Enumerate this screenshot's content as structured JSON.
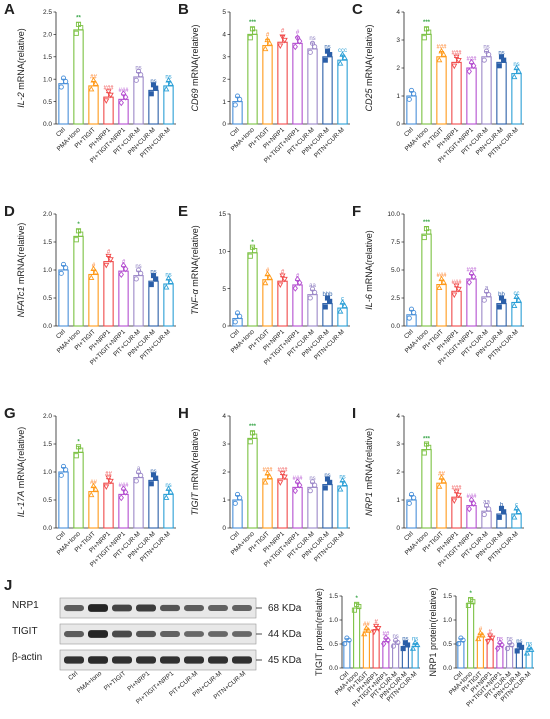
{
  "figure": {
    "colors": [
      "#4a90d9",
      "#7bc142",
      "#ff9a1a",
      "#f04a4a",
      "#b44fd0",
      "#9c88c8",
      "#2b5fa8",
      "#2a9fd6"
    ],
    "categories": [
      "Ctrl",
      "PMA+Iono",
      "PI+TIGIT",
      "PI+NRP1",
      "PI+TIGIT+NRP1",
      "PIT+CUR-M",
      "PIN+CUR-M",
      "PITN+CUR-M"
    ],
    "blot_categories": [
      "Ctrl",
      "PMA+Iono",
      "PI+TIGIT",
      "PI+NRP1",
      "PI+TIGIT+NRP1",
      "PIT+CUR-M",
      "PIN+CUR-M",
      "PITN+CUR-M"
    ],
    "blot_rows": [
      "NRP1",
      "TIGIT",
      "β-actin"
    ],
    "blot_kda": [
      "68 KDa",
      "44 KDa",
      "45 KDa"
    ],
    "panel_J_letter": "J"
  },
  "chart_data": [
    {
      "panel": "A",
      "type": "bar",
      "gene": "IL-2",
      "ylabel_suffix": " mRNA(relative)",
      "ylim": [
        0,
        2.5
      ],
      "yticks": [
        "0.0",
        "0.5",
        "1.0",
        "1.5",
        "2.0",
        "2.5"
      ],
      "values": [
        0.9,
        2.1,
        0.85,
        0.6,
        0.55,
        1.05,
        0.75,
        0.85
      ],
      "sig": [
        "",
        "**",
        "##",
        "###",
        "###",
        "ns",
        "ns",
        "ns"
      ]
    },
    {
      "panel": "B",
      "type": "bar",
      "gene": "CD69",
      "ylabel_suffix": " mRNA(relative)",
      "ylim": [
        0,
        5
      ],
      "yticks": [
        "0",
        "1",
        "2",
        "3",
        "4",
        "5"
      ],
      "values": [
        1.0,
        4.0,
        3.5,
        3.65,
        3.6,
        3.35,
        3.0,
        2.85
      ],
      "sig": [
        "",
        "***",
        "#",
        "#",
        "#",
        "ns",
        "ns",
        "ccc"
      ]
    },
    {
      "panel": "C",
      "type": "bar",
      "gene": "CD25",
      "ylabel_suffix": " mRNA(relative)",
      "ylim": [
        0,
        4
      ],
      "yticks": [
        "0",
        "1",
        "2",
        "3",
        "4"
      ],
      "values": [
        1.0,
        3.2,
        2.4,
        2.2,
        2.0,
        2.4,
        2.2,
        1.8
      ],
      "sig": [
        "",
        "***",
        "###",
        "###",
        "###",
        "ns",
        "ns",
        "ns"
      ]
    },
    {
      "panel": "D",
      "type": "bar",
      "gene": "NFATc1",
      "ylabel_suffix": " mRNA(relative)",
      "ylim": [
        0,
        2.0
      ],
      "yticks": [
        "0.0",
        "0.5",
        "1.0",
        "1.5",
        "2.0"
      ],
      "values": [
        1.0,
        1.6,
        0.92,
        1.15,
        0.98,
        0.9,
        0.8,
        0.75
      ],
      "sig": [
        "",
        "*",
        "#",
        "#",
        "#",
        "ns",
        "ns",
        "ns"
      ]
    },
    {
      "panel": "E",
      "type": "bar",
      "gene": "TNF-α",
      "ylabel_suffix": " mRNA(relative)",
      "ylim": [
        0,
        15
      ],
      "yticks": [
        "0",
        "5",
        "10",
        "15"
      ],
      "values": [
        1.0,
        9.8,
        6.2,
        6.0,
        5.5,
        4.2,
        3.0,
        2.4
      ],
      "sig": [
        "",
        "*",
        "#",
        "#",
        "#",
        "aa",
        "bbb",
        "c"
      ]
    },
    {
      "panel": "F",
      "type": "bar",
      "gene": "IL-6",
      "ylabel_suffix": " mRNA(relative)",
      "ylim": [
        0,
        10
      ],
      "yticks": [
        "0.0",
        "2.5",
        "5.0",
        "7.5",
        "10.0"
      ],
      "values": [
        1.0,
        8.2,
        3.7,
        3.1,
        4.2,
        2.6,
        2.0,
        2.1
      ],
      "sig": [
        "",
        "***",
        "###",
        "###",
        "###",
        "a",
        "bb",
        "cc"
      ]
    },
    {
      "panel": "G",
      "type": "bar",
      "gene": "IL-17A",
      "ylabel_suffix": " mRNA(relative)",
      "ylim": [
        0,
        2.0
      ],
      "yticks": [
        "0.0",
        "0.5",
        "1.0",
        "1.5",
        "2.0"
      ],
      "values": [
        1.0,
        1.35,
        0.65,
        0.8,
        0.6,
        0.9,
        0.85,
        0.6
      ],
      "sig": [
        "",
        "*",
        "##",
        "##",
        "###",
        "a",
        "ns",
        "ns"
      ]
    },
    {
      "panel": "H",
      "type": "bar",
      "gene": "TIGIT",
      "ylabel_suffix": " mRNA(relative)",
      "ylim": [
        0,
        4
      ],
      "yticks": [
        "0",
        "1",
        "2",
        "3",
        "4"
      ],
      "values": [
        1.0,
        3.2,
        1.75,
        1.75,
        1.45,
        1.45,
        1.55,
        1.5
      ],
      "sig": [
        "",
        "***",
        "###",
        "###",
        "###",
        "ns",
        "ns",
        "ns"
      ]
    },
    {
      "panel": "I",
      "type": "bar",
      "gene": "NRP1",
      "ylabel_suffix": " mRNA(relative)",
      "ylim": [
        0,
        4
      ],
      "yticks": [
        "0",
        "1",
        "2",
        "3",
        "4"
      ],
      "values": [
        1.0,
        2.8,
        1.6,
        1.1,
        0.8,
        0.6,
        0.5,
        0.5
      ],
      "sig": [
        "",
        "***",
        "##",
        "###",
        "###",
        "aa",
        "b",
        "c"
      ]
    },
    {
      "panel": "J1",
      "type": "bar",
      "ylabel": "TIGIT protein(relative)",
      "ylim": [
        0,
        1.5
      ],
      "yticks": [
        "0.0",
        "0.5",
        "1.0",
        "1.5"
      ],
      "values": [
        0.55,
        1.25,
        0.75,
        0.8,
        0.55,
        0.5,
        0.45,
        0.45
      ],
      "sig": [
        "",
        "*",
        "##",
        "#",
        "##",
        "ns",
        "ns",
        "ns"
      ]
    },
    {
      "panel": "J2",
      "type": "bar",
      "ylabel": "NRP1 protein(relative)",
      "ylim": [
        0,
        1.5
      ],
      "yticks": [
        "0.0",
        "0.5",
        "1.0",
        "1.5"
      ],
      "values": [
        0.55,
        1.35,
        0.65,
        0.6,
        0.45,
        0.45,
        0.4,
        0.35
      ],
      "sig": [
        "",
        "*",
        "#",
        "#",
        "ns",
        "ns",
        "ns",
        "ns"
      ]
    }
  ]
}
